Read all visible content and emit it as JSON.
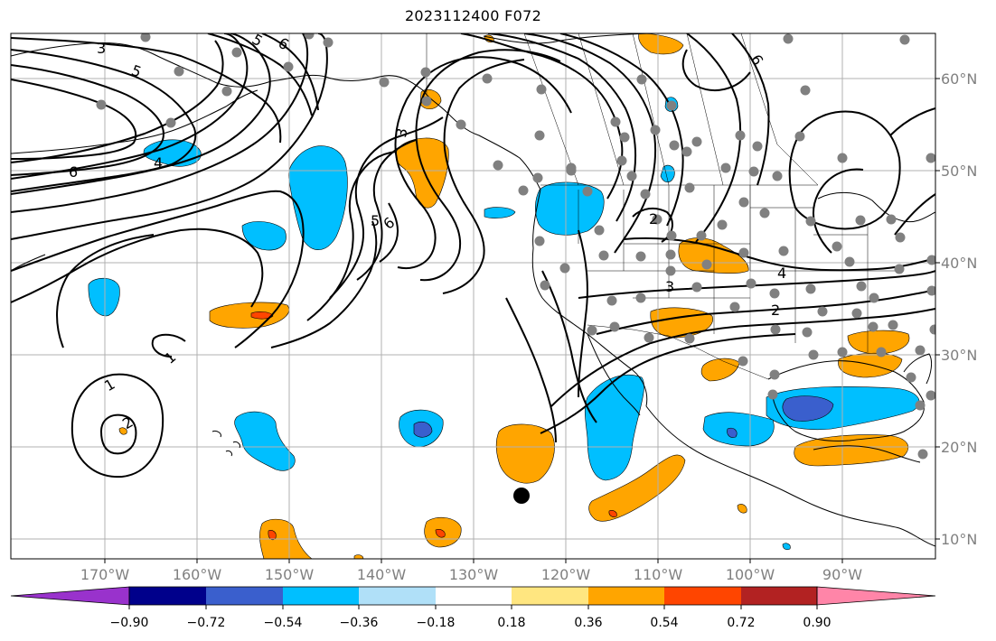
{
  "title": "2023112400 F072",
  "longitude_labels": [
    "170°W",
    "160°W",
    "150°W",
    "140°W",
    "130°W",
    "120°W",
    "110°W",
    "100°W",
    "90°W"
  ],
  "latitude_labels": [
    "60°N",
    "50°N",
    "40°N",
    "30°N",
    "20°N",
    "10°N"
  ],
  "colorbar": {
    "ticks": [
      "−0.90",
      "−0.72",
      "−0.54",
      "−0.36",
      "−0.18",
      "0.18",
      "0.36",
      "0.54",
      "0.72",
      "0.90"
    ],
    "colors": [
      "#9932cc",
      "#00008b",
      "#3a5fcd",
      "#00bfff",
      "#b0e0f8",
      "#ffffff",
      "#ffe680",
      "#ffa500",
      "#ff4500",
      "#b22222",
      "#ff85a8"
    ]
  },
  "contour_labels": [
    "3",
    "5",
    "6",
    "5",
    "6",
    "4",
    "6",
    "3",
    "2",
    "4",
    "3",
    "2",
    "1",
    "1",
    "2",
    "5",
    "6"
  ],
  "colors": {
    "positive": "#ffa500",
    "negative": "#00bfff",
    "grid": "#b0b0b0",
    "station": "#808080"
  }
}
